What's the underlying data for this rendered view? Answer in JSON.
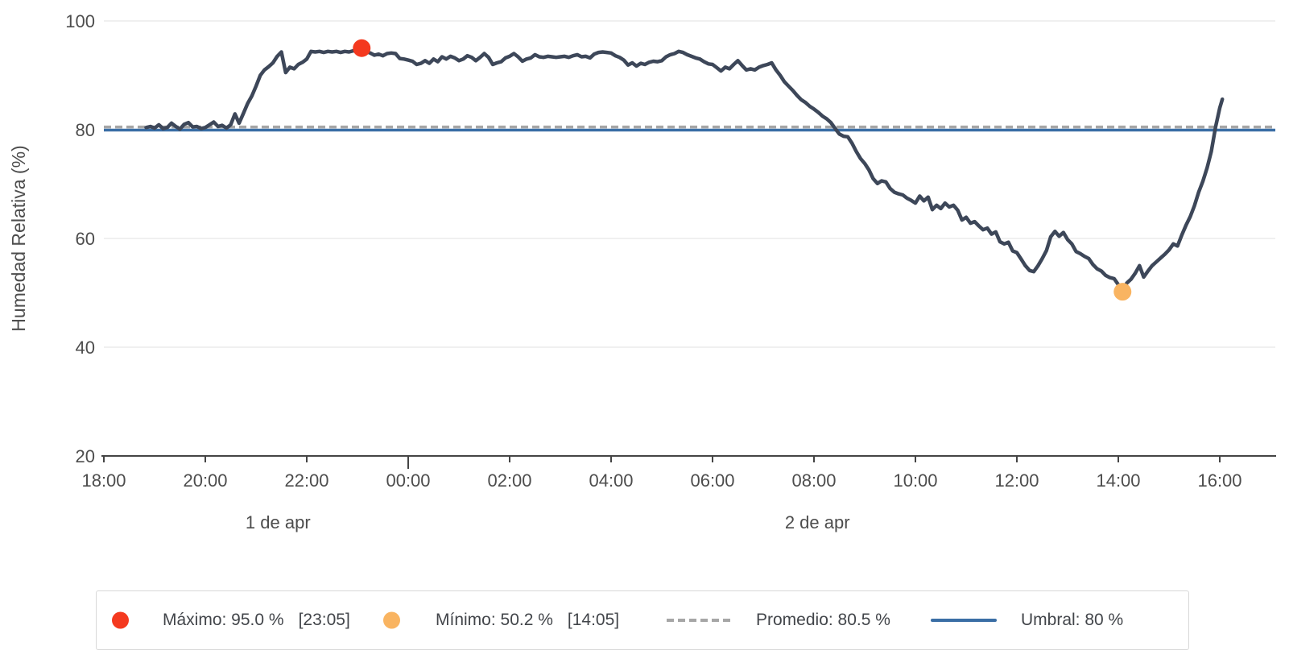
{
  "page": {
    "background": "#ffffff"
  },
  "chart_data": {
    "type": "line",
    "title": "",
    "xlabel": "",
    "ylabel": "Humedad Relativa (%)",
    "ylim": [
      20,
      100
    ],
    "y_ticks": [
      100,
      80,
      60,
      40,
      20
    ],
    "grid": "horizontal-only",
    "legend_position": "bottom",
    "x_axis_start_time": "1 de apr 18:00",
    "x_tick_labels": [
      {
        "minute": 0,
        "label": "18:00"
      },
      {
        "minute": 120,
        "label": "20:00"
      },
      {
        "minute": 240,
        "label": "22:00"
      },
      {
        "minute": 360,
        "label": "00:00",
        "major": true
      },
      {
        "minute": 480,
        "label": "02:00"
      },
      {
        "minute": 600,
        "label": "04:00"
      },
      {
        "minute": 720,
        "label": "06:00"
      },
      {
        "minute": 840,
        "label": "08:00"
      },
      {
        "minute": 960,
        "label": "10:00"
      },
      {
        "minute": 1080,
        "label": "12:00"
      },
      {
        "minute": 1200,
        "label": "14:00"
      },
      {
        "minute": 1320,
        "label": "16:00"
      }
    ],
    "date_labels": [
      {
        "label": "1 de apr",
        "minute": 206
      },
      {
        "label": "2 de apr",
        "minute": 844
      }
    ],
    "average": 80.5,
    "threshold": 80,
    "markers": {
      "max": {
        "minute": 305,
        "value": 95.0,
        "time_label": "23:05"
      },
      "min": {
        "minute": 1205,
        "value": 50.2,
        "time_label": "14:05"
      }
    },
    "series": [
      {
        "name": "Humedad Relativa",
        "points_minutes_from_1apr_1800_vs_percent": [
          [
            50,
            80.4
          ],
          [
            55,
            80.6
          ],
          [
            60,
            80.3
          ],
          [
            65,
            80.9
          ],
          [
            70,
            80.2
          ],
          [
            75,
            80.4
          ],
          [
            80,
            81.2
          ],
          [
            85,
            80.6
          ],
          [
            90,
            80.1
          ],
          [
            95,
            81.0
          ],
          [
            100,
            81.3
          ],
          [
            105,
            80.5
          ],
          [
            110,
            80.6
          ],
          [
            115,
            80.2
          ],
          [
            120,
            80.4
          ],
          [
            125,
            80.9
          ],
          [
            130,
            81.4
          ],
          [
            135,
            80.6
          ],
          [
            140,
            80.8
          ],
          [
            145,
            80.3
          ],
          [
            150,
            80.9
          ],
          [
            155,
            82.9
          ],
          [
            160,
            81.2
          ],
          [
            165,
            83.0
          ],
          [
            170,
            84.8
          ],
          [
            175,
            86.2
          ],
          [
            180,
            88.0
          ],
          [
            185,
            90.0
          ],
          [
            190,
            91.0
          ],
          [
            195,
            91.6
          ],
          [
            200,
            92.3
          ],
          [
            205,
            93.5
          ],
          [
            210,
            94.3
          ],
          [
            215,
            90.5
          ],
          [
            220,
            91.5
          ],
          [
            225,
            91.2
          ],
          [
            230,
            92.0
          ],
          [
            235,
            92.4
          ],
          [
            240,
            93.0
          ],
          [
            245,
            94.4
          ],
          [
            250,
            94.3
          ],
          [
            255,
            94.4
          ],
          [
            260,
            94.2
          ],
          [
            265,
            94.4
          ],
          [
            270,
            94.3
          ],
          [
            275,
            94.4
          ],
          [
            280,
            94.2
          ],
          [
            285,
            94.4
          ],
          [
            290,
            94.3
          ],
          [
            295,
            94.5
          ],
          [
            300,
            94.6
          ],
          [
            305,
            95.0
          ],
          [
            310,
            94.4
          ],
          [
            315,
            94.1
          ],
          [
            320,
            93.7
          ],
          [
            325,
            93.9
          ],
          [
            330,
            93.6
          ],
          [
            335,
            94.0
          ],
          [
            340,
            94.1
          ],
          [
            345,
            94.0
          ],
          [
            350,
            93.1
          ],
          [
            355,
            93.0
          ],
          [
            360,
            92.8
          ],
          [
            365,
            92.6
          ],
          [
            370,
            92.0
          ],
          [
            375,
            92.2
          ],
          [
            380,
            92.7
          ],
          [
            385,
            92.2
          ],
          [
            390,
            93.0
          ],
          [
            395,
            92.5
          ],
          [
            400,
            93.4
          ],
          [
            405,
            93.0
          ],
          [
            410,
            93.5
          ],
          [
            415,
            93.2
          ],
          [
            420,
            92.7
          ],
          [
            425,
            93.0
          ],
          [
            430,
            93.6
          ],
          [
            435,
            93.3
          ],
          [
            440,
            92.7
          ],
          [
            445,
            93.3
          ],
          [
            450,
            94.0
          ],
          [
            455,
            93.3
          ],
          [
            460,
            92.0
          ],
          [
            465,
            92.3
          ],
          [
            470,
            92.5
          ],
          [
            475,
            93.2
          ],
          [
            480,
            93.5
          ],
          [
            485,
            94.0
          ],
          [
            490,
            93.4
          ],
          [
            495,
            92.6
          ],
          [
            500,
            93.0
          ],
          [
            505,
            93.2
          ],
          [
            510,
            93.8
          ],
          [
            515,
            93.4
          ],
          [
            520,
            93.3
          ],
          [
            525,
            93.5
          ],
          [
            530,
            93.4
          ],
          [
            535,
            93.3
          ],
          [
            540,
            93.4
          ],
          [
            545,
            93.5
          ],
          [
            550,
            93.3
          ],
          [
            555,
            93.6
          ],
          [
            560,
            93.8
          ],
          [
            565,
            93.4
          ],
          [
            570,
            93.5
          ],
          [
            575,
            93.2
          ],
          [
            580,
            93.9
          ],
          [
            585,
            94.2
          ],
          [
            590,
            94.3
          ],
          [
            595,
            94.2
          ],
          [
            600,
            94.1
          ],
          [
            605,
            93.6
          ],
          [
            610,
            93.3
          ],
          [
            615,
            92.8
          ],
          [
            620,
            91.9
          ],
          [
            625,
            92.3
          ],
          [
            630,
            91.7
          ],
          [
            635,
            92.2
          ],
          [
            640,
            92.0
          ],
          [
            645,
            92.4
          ],
          [
            650,
            92.6
          ],
          [
            655,
            92.5
          ],
          [
            660,
            92.7
          ],
          [
            665,
            93.4
          ],
          [
            670,
            93.8
          ],
          [
            675,
            94.0
          ],
          [
            680,
            94.4
          ],
          [
            685,
            94.2
          ],
          [
            690,
            93.8
          ],
          [
            695,
            93.5
          ],
          [
            700,
            93.2
          ],
          [
            705,
            93.0
          ],
          [
            710,
            92.5
          ],
          [
            715,
            92.1
          ],
          [
            720,
            92.0
          ],
          [
            725,
            91.4
          ],
          [
            730,
            90.8
          ],
          [
            735,
            91.5
          ],
          [
            740,
            91.2
          ],
          [
            745,
            92.0
          ],
          [
            750,
            92.7
          ],
          [
            755,
            91.8
          ],
          [
            760,
            91.0
          ],
          [
            765,
            91.2
          ],
          [
            770,
            91.0
          ],
          [
            775,
            91.5
          ],
          [
            780,
            91.8
          ],
          [
            785,
            92.0
          ],
          [
            790,
            92.3
          ],
          [
            795,
            91.0
          ],
          [
            800,
            90.0
          ],
          [
            805,
            88.8
          ],
          [
            810,
            88.0
          ],
          [
            815,
            87.2
          ],
          [
            820,
            86.3
          ],
          [
            825,
            85.5
          ],
          [
            830,
            85.0
          ],
          [
            835,
            84.3
          ],
          [
            840,
            83.8
          ],
          [
            845,
            83.2
          ],
          [
            850,
            82.5
          ],
          [
            855,
            82.0
          ],
          [
            860,
            81.3
          ],
          [
            865,
            80.2
          ],
          [
            870,
            79.2
          ],
          [
            875,
            78.8
          ],
          [
            880,
            78.7
          ],
          [
            885,
            77.5
          ],
          [
            890,
            76.0
          ],
          [
            895,
            74.7
          ],
          [
            900,
            73.8
          ],
          [
            905,
            72.6
          ],
          [
            910,
            71.0
          ],
          [
            915,
            70.1
          ],
          [
            920,
            70.6
          ],
          [
            925,
            70.4
          ],
          [
            930,
            69.2
          ],
          [
            935,
            68.5
          ],
          [
            940,
            68.2
          ],
          [
            945,
            68.0
          ],
          [
            950,
            67.4
          ],
          [
            955,
            67.0
          ],
          [
            960,
            66.5
          ],
          [
            965,
            67.8
          ],
          [
            970,
            66.9
          ],
          [
            975,
            67.6
          ],
          [
            980,
            65.3
          ],
          [
            985,
            66.1
          ],
          [
            990,
            65.5
          ],
          [
            995,
            66.5
          ],
          [
            1000,
            65.8
          ],
          [
            1005,
            66.1
          ],
          [
            1010,
            65.2
          ],
          [
            1015,
            63.4
          ],
          [
            1020,
            63.9
          ],
          [
            1025,
            62.8
          ],
          [
            1030,
            63.1
          ],
          [
            1035,
            62.3
          ],
          [
            1040,
            61.6
          ],
          [
            1045,
            61.9
          ],
          [
            1050,
            60.8
          ],
          [
            1055,
            61.2
          ],
          [
            1060,
            59.4
          ],
          [
            1065,
            59.0
          ],
          [
            1070,
            59.3
          ],
          [
            1075,
            57.7
          ],
          [
            1080,
            57.4
          ],
          [
            1085,
            56.2
          ],
          [
            1090,
            55.0
          ],
          [
            1095,
            54.1
          ],
          [
            1100,
            53.9
          ],
          [
            1105,
            55.0
          ],
          [
            1110,
            56.3
          ],
          [
            1115,
            57.8
          ],
          [
            1120,
            60.3
          ],
          [
            1125,
            61.3
          ],
          [
            1130,
            60.4
          ],
          [
            1135,
            61.1
          ],
          [
            1140,
            59.8
          ],
          [
            1145,
            59.0
          ],
          [
            1150,
            57.6
          ],
          [
            1155,
            57.2
          ],
          [
            1160,
            56.7
          ],
          [
            1165,
            56.3
          ],
          [
            1170,
            55.2
          ],
          [
            1175,
            54.4
          ],
          [
            1180,
            54.0
          ],
          [
            1185,
            53.2
          ],
          [
            1190,
            52.8
          ],
          [
            1195,
            52.6
          ],
          [
            1200,
            51.5
          ],
          [
            1205,
            50.2
          ],
          [
            1210,
            51.8
          ],
          [
            1215,
            52.5
          ],
          [
            1220,
            53.6
          ],
          [
            1225,
            55.0
          ],
          [
            1230,
            52.9
          ],
          [
            1235,
            54.0
          ],
          [
            1240,
            55.0
          ],
          [
            1245,
            55.7
          ],
          [
            1250,
            56.4
          ],
          [
            1255,
            57.1
          ],
          [
            1260,
            57.9
          ],
          [
            1265,
            59.0
          ],
          [
            1270,
            58.6
          ],
          [
            1275,
            60.6
          ],
          [
            1280,
            62.4
          ],
          [
            1285,
            64.0
          ],
          [
            1290,
            66.0
          ],
          [
            1295,
            68.5
          ],
          [
            1300,
            70.5
          ],
          [
            1305,
            73.0
          ],
          [
            1310,
            76.0
          ],
          [
            1315,
            80.5
          ],
          [
            1320,
            84.0
          ],
          [
            1323,
            85.6
          ]
        ]
      }
    ]
  },
  "legend": {
    "max_label": "Máximo: 95.0 %",
    "max_time": "[23:05]",
    "min_label": "Mínimo: 50.2 %",
    "min_time": "[14:05]",
    "promedio_label": "Promedio: 80.5 %",
    "umbral_label": "Umbral: 80 %"
  },
  "colors": {
    "series_line": "#3d4759",
    "max_marker": "#f4391f",
    "min_marker": "#f9b461",
    "average_line": "#a6a6a6",
    "threshold_line": "#3a6ea5",
    "grid_line": "#ebebeb",
    "axis_line": "#444444",
    "tick_text": "#4d4d4d",
    "legend_text": "#42454a",
    "legend_border": "#d8d8d8"
  }
}
